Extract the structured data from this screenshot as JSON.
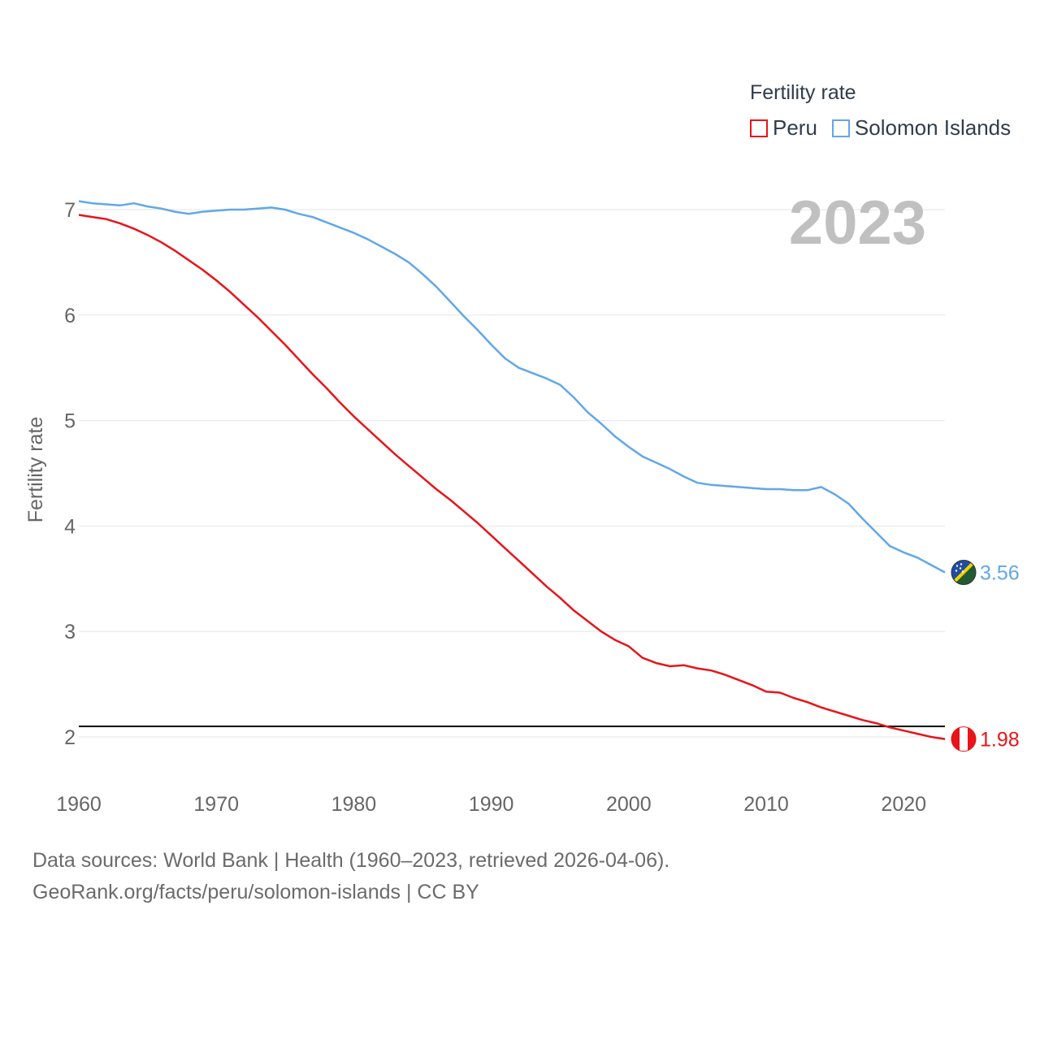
{
  "legend": {
    "title": "Fertility rate",
    "items": [
      {
        "name": "Peru",
        "color": "#e8141a"
      },
      {
        "name": "Solomon Islands",
        "color": "#61a7ea"
      }
    ]
  },
  "year_label": "2023",
  "source": {
    "line1": "Data sources: World Bank | Health (1960–2023, retrieved 2026-04-06).",
    "line2": "GeoRank.org/facts/peru/solomon-islands | CC BY"
  },
  "chart_data": {
    "type": "line",
    "title": "Fertility rate",
    "xlabel": "",
    "ylabel": "Fertility rate",
    "xlim": [
      1960,
      2023
    ],
    "ylim": [
      1.7,
      7.2
    ],
    "x_ticks": [
      1960,
      1970,
      1980,
      1990,
      2000,
      2010,
      2020
    ],
    "y_ticks": [
      2,
      3,
      4,
      5,
      6,
      7
    ],
    "reference_line": 2.1,
    "x": [
      1960,
      1961,
      1962,
      1963,
      1964,
      1965,
      1966,
      1967,
      1968,
      1969,
      1970,
      1971,
      1972,
      1973,
      1974,
      1975,
      1976,
      1977,
      1978,
      1979,
      1980,
      1981,
      1982,
      1983,
      1984,
      1985,
      1986,
      1987,
      1988,
      1989,
      1990,
      1991,
      1992,
      1993,
      1994,
      1995,
      1996,
      1997,
      1998,
      1999,
      2000,
      2001,
      2002,
      2003,
      2004,
      2005,
      2006,
      2007,
      2008,
      2009,
      2010,
      2011,
      2012,
      2013,
      2014,
      2015,
      2016,
      2017,
      2018,
      2019,
      2020,
      2021,
      2022,
      2023
    ],
    "series": [
      {
        "name": "Peru",
        "color": "#e8141a",
        "end_label": "1.98",
        "values": [
          6.95,
          6.93,
          6.91,
          6.87,
          6.82,
          6.76,
          6.69,
          6.61,
          6.52,
          6.43,
          6.33,
          6.22,
          6.1,
          5.98,
          5.85,
          5.72,
          5.58,
          5.44,
          5.31,
          5.17,
          5.04,
          4.92,
          4.8,
          4.68,
          4.57,
          4.46,
          4.35,
          4.25,
          4.14,
          4.03,
          3.91,
          3.79,
          3.67,
          3.55,
          3.43,
          3.32,
          3.2,
          3.1,
          3.0,
          2.92,
          2.86,
          2.75,
          2.7,
          2.67,
          2.68,
          2.65,
          2.63,
          2.59,
          2.54,
          2.49,
          2.43,
          2.42,
          2.37,
          2.33,
          2.28,
          2.24,
          2.2,
          2.16,
          2.13,
          2.09,
          2.06,
          2.03,
          2.0,
          1.98
        ]
      },
      {
        "name": "Solomon Islands",
        "color": "#61a7ea",
        "end_label": "3.56",
        "values": [
          7.08,
          7.06,
          7.05,
          7.04,
          7.06,
          7.03,
          7.01,
          6.98,
          6.96,
          6.98,
          6.99,
          7.0,
          7.0,
          7.01,
          7.02,
          7.0,
          6.96,
          6.93,
          6.88,
          6.83,
          6.78,
          6.72,
          6.65,
          6.58,
          6.5,
          6.39,
          6.27,
          6.13,
          5.99,
          5.86,
          5.72,
          5.59,
          5.5,
          5.45,
          5.4,
          5.34,
          5.22,
          5.08,
          4.97,
          4.85,
          4.75,
          4.66,
          4.6,
          4.54,
          4.47,
          4.41,
          4.39,
          4.38,
          4.37,
          4.36,
          4.35,
          4.35,
          4.34,
          4.34,
          4.37,
          4.3,
          4.21,
          4.07,
          3.94,
          3.81,
          3.75,
          3.7,
          3.63,
          3.56
        ]
      }
    ]
  }
}
